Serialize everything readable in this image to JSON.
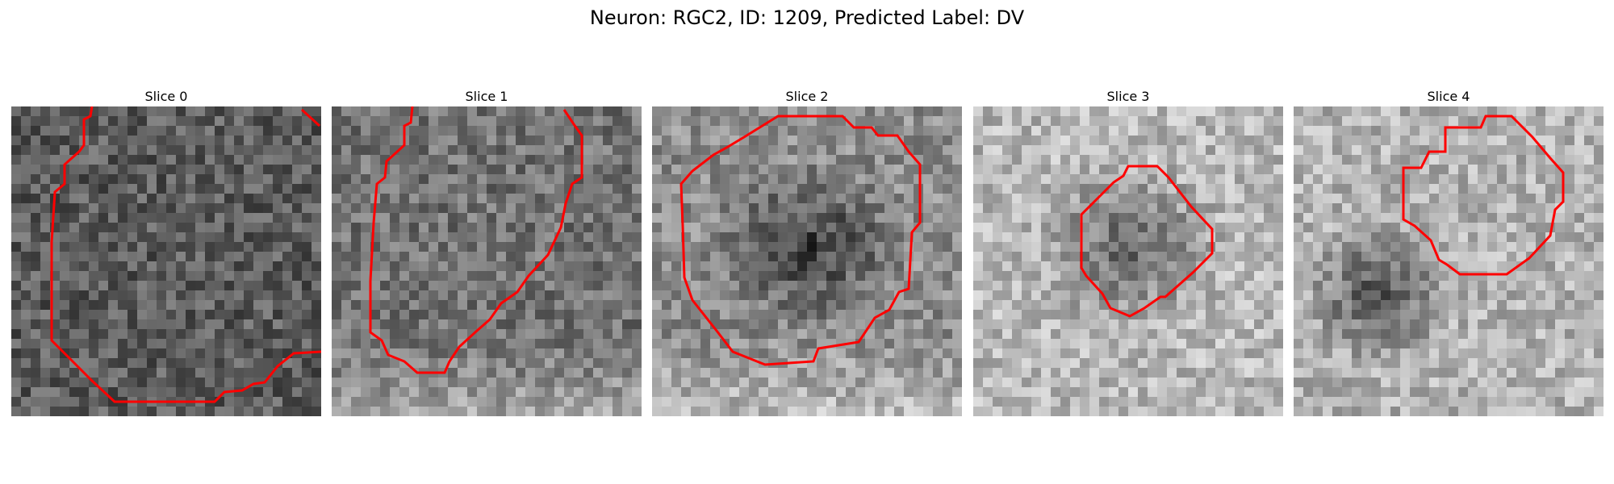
{
  "title": "Neuron: RGC2, ID: 1209, Predicted Label: DV",
  "contour_color": "#ff0000",
  "colormap": "grayscale",
  "panels": [
    {
      "title": "Slice 0",
      "base_gray": 0.36,
      "dark_blob": null
    },
    {
      "title": "Slice 1",
      "base_gray": 0.45,
      "dark_blob": null
    },
    {
      "title": "Slice 2",
      "base_gray": 0.55,
      "dark_blob": "center"
    },
    {
      "title": "Slice 3",
      "base_gray": 0.72,
      "dark_blob": "center"
    },
    {
      "title": "Slice 4",
      "base_gray": 0.7,
      "dark_blob": "left"
    }
  ]
}
